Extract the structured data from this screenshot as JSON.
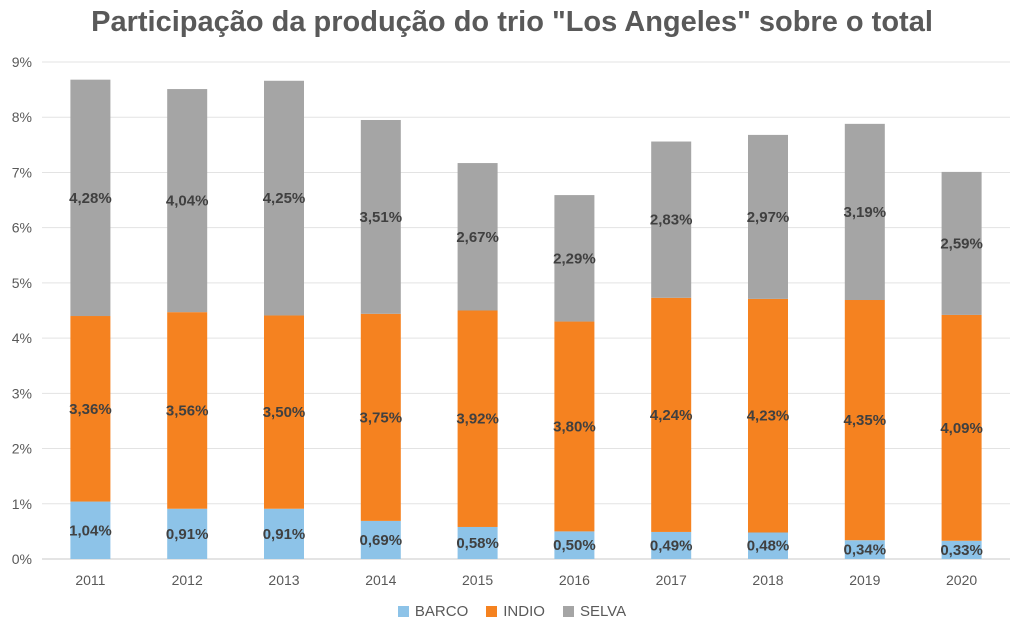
{
  "chart_data": {
    "type": "stacked-bar",
    "title": "Participação da produção do trio \"Los Angeles\" sobre o total",
    "xlabel": "",
    "ylabel": "",
    "ylim": [
      0,
      9
    ],
    "yticks": [
      "0%",
      "1%",
      "2%",
      "3%",
      "4%",
      "5%",
      "6%",
      "7%",
      "8%",
      "9%"
    ],
    "categories": [
      "2011",
      "2012",
      "2013",
      "2014",
      "2015",
      "2016",
      "2017",
      "2018",
      "2019",
      "2020"
    ],
    "series": [
      {
        "name": "BARCO",
        "color": "#8DC3E8",
        "values": [
          1.04,
          0.91,
          0.91,
          0.69,
          0.58,
          0.5,
          0.49,
          0.48,
          0.34,
          0.33
        ],
        "labels": [
          "1,04%",
          "0,91%",
          "0,91%",
          "0,69%",
          "0,58%",
          "0,50%",
          "0,49%",
          "0,48%",
          "0,34%",
          "0,33%"
        ]
      },
      {
        "name": "INDIO",
        "color": "#F58220",
        "values": [
          3.36,
          3.56,
          3.5,
          3.75,
          3.92,
          3.8,
          4.24,
          4.23,
          4.35,
          4.09
        ],
        "labels": [
          "3,36%",
          "3,56%",
          "3,50%",
          "3,75%",
          "3,92%",
          "3,80%",
          "4,24%",
          "4,23%",
          "4,35%",
          "4,09%"
        ]
      },
      {
        "name": "SELVA",
        "color": "#A5A5A5",
        "values": [
          4.28,
          4.04,
          4.25,
          3.51,
          2.67,
          2.29,
          2.83,
          2.97,
          3.19,
          2.59
        ],
        "labels": [
          "4,28%",
          "4,04%",
          "4,25%",
          "3,51%",
          "2,67%",
          "2,29%",
          "2,83%",
          "2,97%",
          "3,19%",
          "2,59%"
        ]
      }
    ],
    "legend": "bottom",
    "grid": true
  }
}
